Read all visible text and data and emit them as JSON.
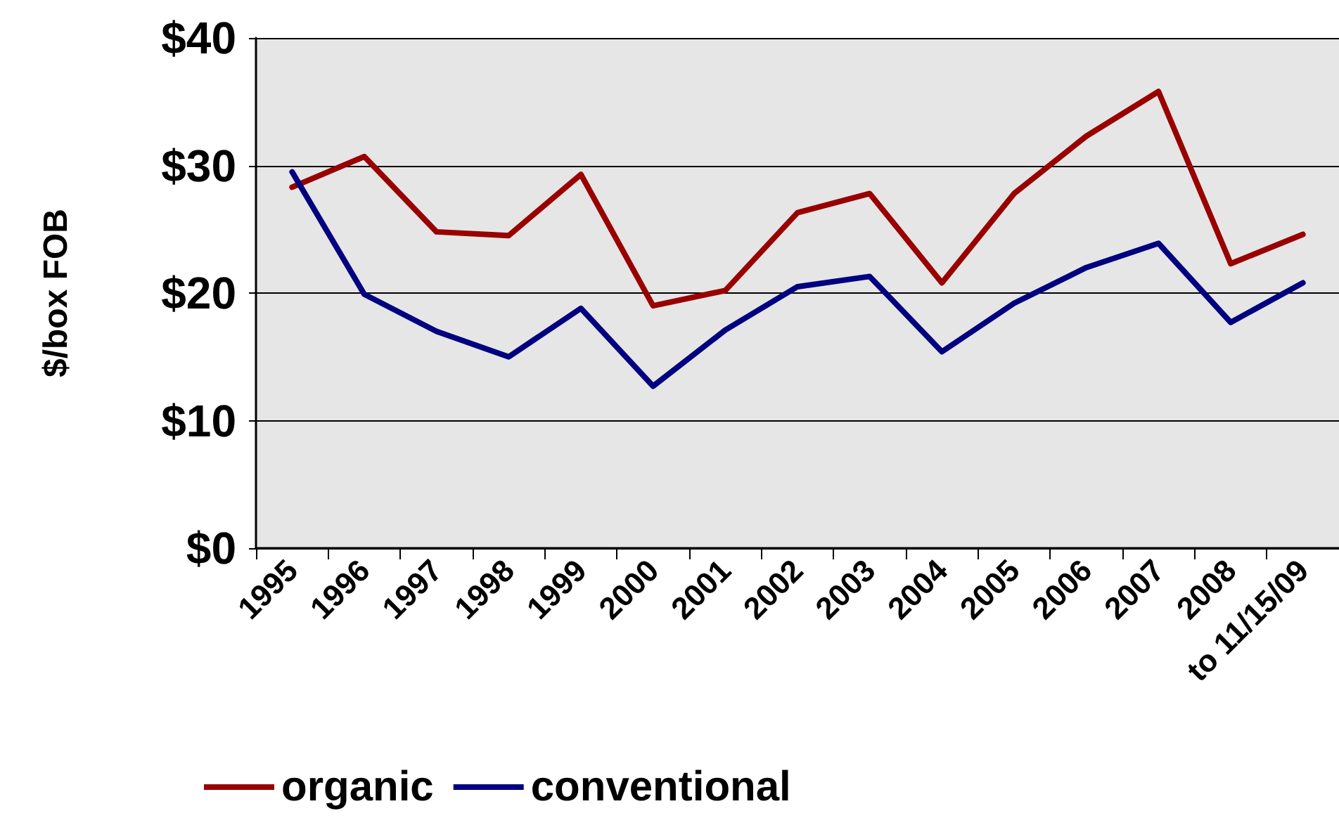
{
  "chart_data": {
    "type": "line",
    "ylabel": "$/box FOB",
    "categories": [
      "1995",
      "1996",
      "1997",
      "1998",
      "1999",
      "2000",
      "2001",
      "2002",
      "2003",
      "2004",
      "2005",
      "2006",
      "2007",
      "2008",
      "to 11/15/09"
    ],
    "series": [
      {
        "name": "organic",
        "color": "#990000",
        "values": [
          28.3,
          30.7,
          24.8,
          24.5,
          29.3,
          19.0,
          20.2,
          26.3,
          27.8,
          20.8,
          27.8,
          32.3,
          35.8,
          22.3,
          24.6
        ]
      },
      {
        "name": "conventional",
        "color": "#000080",
        "values": [
          29.5,
          19.9,
          17.0,
          15.0,
          18.8,
          12.7,
          17.1,
          20.5,
          21.3,
          15.4,
          19.2,
          22.0,
          23.9,
          17.7,
          20.8
        ]
      }
    ],
    "ylim": [
      0,
      40
    ],
    "yticks": [
      {
        "value": 0,
        "label": "$0"
      },
      {
        "value": 10,
        "label": "$10"
      },
      {
        "value": 20,
        "label": "$20"
      },
      {
        "value": 30,
        "label": "$30"
      },
      {
        "value": 40,
        "label": "$40"
      }
    ],
    "grid": "y",
    "legend": "bottom left",
    "marker": "none",
    "line_style": "solid"
  }
}
